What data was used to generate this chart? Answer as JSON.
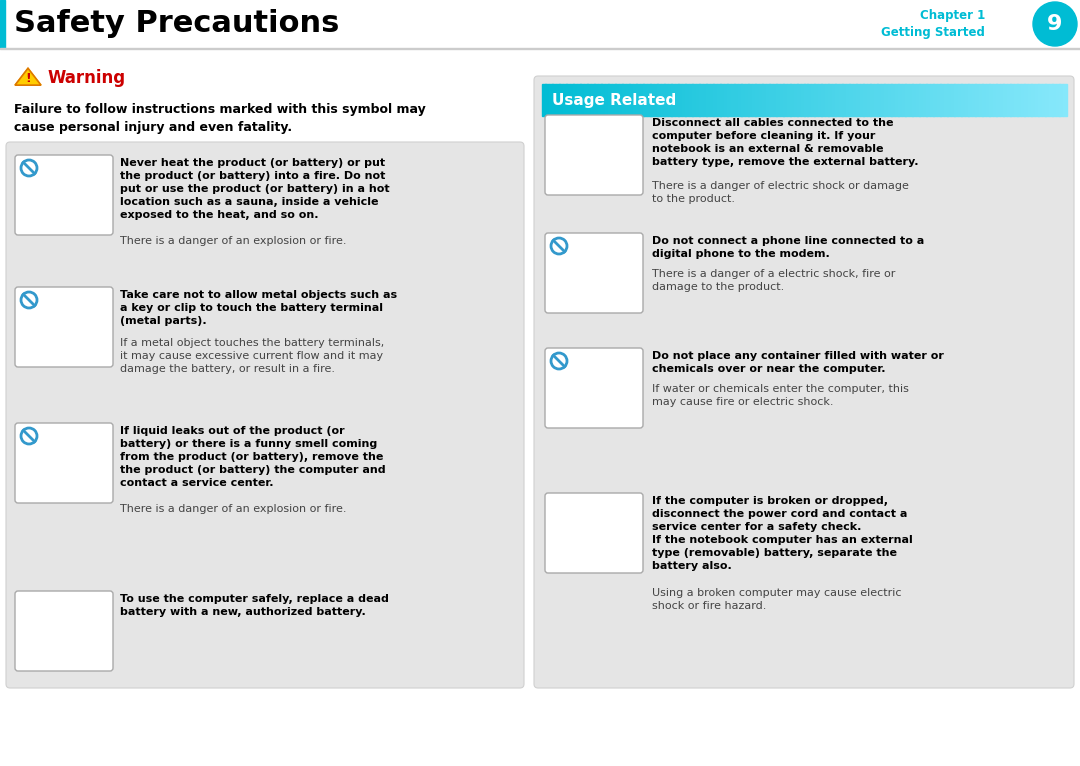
{
  "page_bg": "#ffffff",
  "header_title": "Safety Precautions",
  "header_title_size": 22,
  "left_bar_color": "#00bcd4",
  "chapter_label": "Chapter 1",
  "chapter_sublabel": "Getting Started",
  "chapter_num": "9",
  "chapter_circle_color": "#00bcd4",
  "chapter_text_color": "#00bcd4",
  "chapter_num_color": "#ffffff",
  "warning_color": "#cc0000",
  "warning_text": "Warning",
  "warning_desc_line1": "Failure to follow instructions marked with this symbol may",
  "warning_desc_line2": "cause personal injury and even fatality.",
  "panel_bg": "#e5e5e5",
  "panel_border": "#d0d0d0",
  "usage_header_text": "Usage Related",
  "usage_header_text_color": "#ffffff",
  "cyan_dark": "#00bcd4",
  "cyan_light": "#a0e8f8",
  "bold_color": "#000000",
  "normal_color": "#444444",
  "img_border": "#aaaaaa",
  "img_bg": "#ffffff",
  "no_symbol_color": "#3399cc",
  "left_items": [
    {
      "bold": "Never heat the product (or battery) or put\nthe product (or battery) into a fire. Do not\nput or use the product (or battery) in a hot\nlocation such as a sauna, inside a vehicle\nexposed to the heat, and so on.",
      "normal": "There is a danger of an explosion or fire.",
      "has_no": true
    },
    {
      "bold": "Take care not to allow metal objects such as\na key or clip to touch the battery terminal\n(metal parts).",
      "normal": "If a metal object touches the battery terminals,\nit may cause excessive current flow and it may\ndamage the battery, or result in a fire.",
      "has_no": true
    },
    {
      "bold": "If liquid leaks out of the product (or\nbattery) or there is a funny smell coming\nfrom the product (or battery), remove the\nthe product (or battery) the computer and\ncontact a service center.",
      "normal": "There is a danger of an explosion or fire.",
      "has_no": true
    },
    {
      "bold": "To use the computer safely, replace a dead\nbattery with a new, authorized battery.",
      "normal": "",
      "has_no": false
    }
  ],
  "right_items": [
    {
      "bold": "Disconnect all cables connected to the\ncomputer before cleaning it. If your\nnotebook is an external & removable\nbattery type, remove the external battery.",
      "normal": "There is a danger of electric shock or damage\nto the product.",
      "has_no": false
    },
    {
      "bold": "Do not connect a phone line connected to a\ndigital phone to the modem.",
      "normal": "There is a danger of a electric shock, fire or\ndamage to the product.",
      "has_no": true
    },
    {
      "bold": "Do not place any container filled with water or\nchemicals over or near the computer.",
      "normal": "If water or chemicals enter the computer, this\nmay cause fire or electric shock.",
      "has_no": true
    },
    {
      "bold": "If the computer is broken or dropped,\ndisconnect the power cord and contact a\nservice center for a safety check.\nIf the notebook computer has an external\ntype (removable) battery, separate the\nbattery also.",
      "normal": "Using a broken computer may cause electric\nshock or fire hazard.",
      "has_no": false
    }
  ]
}
